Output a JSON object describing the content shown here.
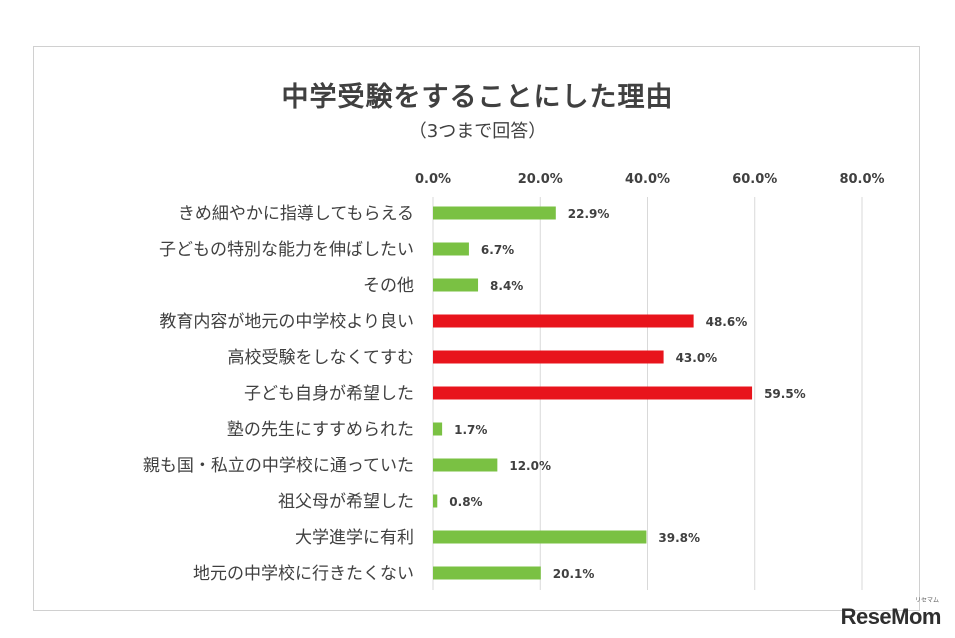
{
  "chart_data": {
    "type": "bar",
    "orientation": "horizontal",
    "title": "中学受験をすることにした理由",
    "subtitle": "（3つまで回答）",
    "categories": [
      "きめ細やかに指導してもらえる",
      "子どもの特別な能力を伸ばしたい",
      "その他",
      "教育内容が地元の中学校より良い",
      "高校受験をしなくてすむ",
      "子ども自身が希望した",
      "塾の先生にすすめられた",
      "親も国・私立の中学校に通っていた",
      "祖父母が希望した",
      "大学進学に有利",
      "地元の中学校に行きたくない"
    ],
    "values": [
      22.9,
      6.7,
      8.4,
      48.6,
      43.0,
      59.5,
      1.7,
      12.0,
      0.8,
      39.8,
      20.1
    ],
    "value_labels": [
      "22.9%",
      "6.7%",
      "8.4%",
      "48.6%",
      "43.0%",
      "59.5%",
      "1.7%",
      "12.0%",
      "0.8%",
      "39.8%",
      "20.1%"
    ],
    "highlighted": [
      false,
      false,
      false,
      true,
      true,
      true,
      false,
      false,
      false,
      false,
      false
    ],
    "xlim": [
      0,
      80
    ],
    "ticks": [
      0,
      20,
      40,
      60,
      80
    ],
    "tick_labels": [
      "0.0%",
      "20.0%",
      "40.0%",
      "60.0%",
      "80.0%"
    ],
    "tick_position": "top",
    "grid": true,
    "colors": {
      "default": "#7ac143",
      "highlight": "#e8141c",
      "grid": "#d9d9d9",
      "text": "#404040"
    }
  },
  "watermark": "ReseMom",
  "watermark_small": "リセマム"
}
